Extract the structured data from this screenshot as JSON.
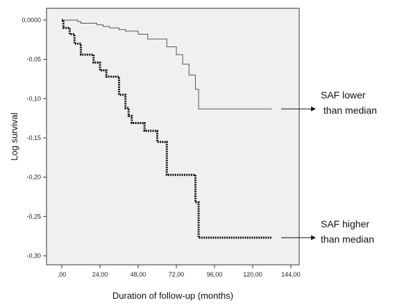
{
  "chart_data": {
    "type": "line",
    "step": true,
    "xlabel": "Duration of follow-up (months)",
    "ylabel": "Log survival",
    "xlim": [
      0,
      144
    ],
    "ylim": [
      -0.305,
      0.002
    ],
    "x_ticks": [
      0,
      24,
      48,
      72,
      96,
      120,
      144
    ],
    "x_tick_labels": [
      ",00",
      "24,00",
      "48,00",
      "72,00",
      "96,00",
      "120,00",
      "144,00"
    ],
    "y_ticks": [
      0,
      -0.05,
      -0.1,
      -0.15,
      -0.2,
      -0.25,
      -0.3
    ],
    "y_tick_labels": [
      "0,0000",
      "-0,05",
      "-0,10",
      "-0,15",
      "-0,20",
      "-0,25",
      "-0,30"
    ],
    "grid": false,
    "plot_background": "#f0f0f0",
    "series": [
      {
        "style": "thin-solid",
        "color": "#555555",
        "points": [
          [
            0,
            0
          ],
          [
            10,
            0
          ],
          [
            10,
            -0.002
          ],
          [
            12,
            -0.002
          ],
          [
            12,
            -0.004
          ],
          [
            22,
            -0.004
          ],
          [
            22,
            -0.006
          ],
          [
            26,
            -0.006
          ],
          [
            26,
            -0.008
          ],
          [
            30,
            -0.008
          ],
          [
            30,
            -0.01
          ],
          [
            36,
            -0.01
          ],
          [
            36,
            -0.012
          ],
          [
            40,
            -0.012
          ],
          [
            40,
            -0.014
          ],
          [
            48,
            -0.014
          ],
          [
            48,
            -0.018
          ],
          [
            54,
            -0.018
          ],
          [
            54,
            -0.024
          ],
          [
            66,
            -0.024
          ],
          [
            66,
            -0.034
          ],
          [
            72,
            -0.034
          ],
          [
            72,
            -0.044
          ],
          [
            76,
            -0.044
          ],
          [
            76,
            -0.056
          ],
          [
            80,
            -0.056
          ],
          [
            80,
            -0.07
          ],
          [
            84,
            -0.07
          ],
          [
            84,
            -0.088
          ],
          [
            86,
            -0.088
          ],
          [
            86,
            -0.113
          ],
          [
            132,
            -0.113
          ]
        ]
      },
      {
        "style": "thick-dotted",
        "color": "#111111",
        "points": [
          [
            0,
            0
          ],
          [
            1,
            0
          ],
          [
            1,
            -0.01
          ],
          [
            5,
            -0.01
          ],
          [
            5,
            -0.018
          ],
          [
            8,
            -0.018
          ],
          [
            8,
            -0.03
          ],
          [
            12,
            -0.03
          ],
          [
            12,
            -0.044
          ],
          [
            20,
            -0.044
          ],
          [
            20,
            -0.054
          ],
          [
            24,
            -0.054
          ],
          [
            24,
            -0.064
          ],
          [
            28,
            -0.064
          ],
          [
            28,
            -0.072
          ],
          [
            36,
            -0.072
          ],
          [
            36,
            -0.095
          ],
          [
            40,
            -0.095
          ],
          [
            40,
            -0.112
          ],
          [
            42,
            -0.112
          ],
          [
            42,
            -0.122
          ],
          [
            44,
            -0.122
          ],
          [
            44,
            -0.131
          ],
          [
            52,
            -0.131
          ],
          [
            52,
            -0.141
          ],
          [
            60,
            -0.141
          ],
          [
            60,
            -0.155
          ],
          [
            66,
            -0.155
          ],
          [
            66,
            -0.197
          ],
          [
            84,
            -0.197
          ],
          [
            84,
            -0.232
          ],
          [
            86,
            -0.232
          ],
          [
            86,
            -0.277
          ],
          [
            132,
            -0.277
          ]
        ]
      }
    ],
    "annotations": [
      {
        "lines": [
          "SAF lower",
          " than median"
        ],
        "arrow_from_y": -0.113
      },
      {
        "lines": [
          "SAF higher",
          "than median"
        ],
        "arrow_from_y": -0.277
      }
    ]
  }
}
